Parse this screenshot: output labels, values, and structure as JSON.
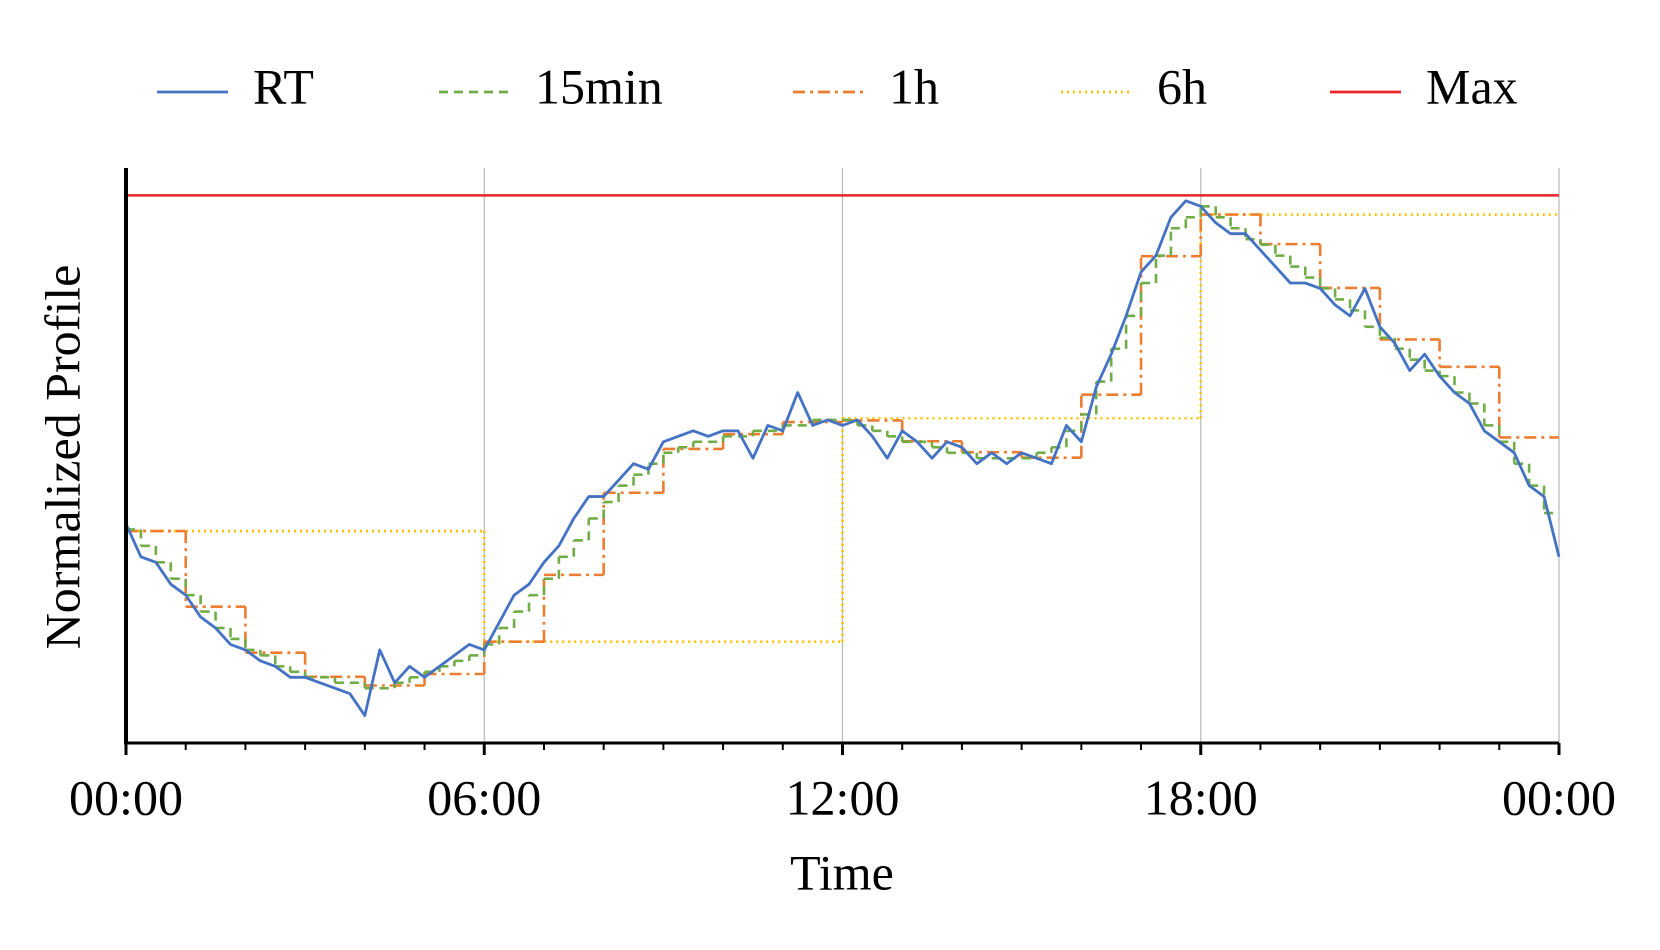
{
  "chart_data": {
    "type": "line",
    "x_label": "Time",
    "y_label": "Normalized Profile",
    "xlim": [
      0,
      24
    ],
    "ylim": [
      0,
      1.05
    ],
    "xticks": [
      {
        "value": 0,
        "label": "00:00"
      },
      {
        "value": 6,
        "label": "06:00"
      },
      {
        "value": 12,
        "label": "12:00"
      },
      {
        "value": 18,
        "label": "18:00"
      },
      {
        "value": 24,
        "label": "00:00"
      }
    ],
    "xminorticks": [
      1,
      2,
      3,
      4,
      5,
      7,
      8,
      9,
      10,
      11,
      13,
      14,
      15,
      16,
      17,
      19,
      20,
      21,
      22,
      23
    ],
    "grid": "x",
    "legend": "top",
    "series": [
      {
        "name": "RT",
        "color": "#4472c4",
        "style": "solid",
        "step": false,
        "x": [
          0,
          0.25,
          0.5,
          0.75,
          1,
          1.25,
          1.5,
          1.75,
          2,
          2.25,
          2.5,
          2.75,
          3,
          3.25,
          3.5,
          3.75,
          4,
          4.25,
          4.5,
          4.75,
          5,
          5.25,
          5.5,
          5.75,
          6,
          6.25,
          6.5,
          6.75,
          7,
          7.25,
          7.5,
          7.75,
          8,
          8.25,
          8.5,
          8.75,
          9,
          9.25,
          9.5,
          9.75,
          10,
          10.25,
          10.5,
          10.75,
          11,
          11.25,
          11.5,
          11.75,
          12,
          12.25,
          12.5,
          12.75,
          13,
          13.25,
          13.5,
          13.75,
          14,
          14.25,
          14.5,
          14.75,
          15,
          15.25,
          15.5,
          15.75,
          16,
          16.25,
          16.5,
          16.75,
          17,
          17.25,
          17.5,
          17.75,
          18,
          18.25,
          18.5,
          18.75,
          19,
          19.25,
          19.5,
          19.75,
          20,
          20.25,
          20.5,
          20.75,
          21,
          21.25,
          21.5,
          21.75,
          22,
          22.25,
          22.5,
          22.75,
          23,
          23.25,
          23.5,
          23.75,
          24
        ],
        "values": [
          0.4,
          0.34,
          0.33,
          0.29,
          0.27,
          0.23,
          0.21,
          0.18,
          0.17,
          0.15,
          0.14,
          0.12,
          0.12,
          0.11,
          0.1,
          0.09,
          0.05,
          0.17,
          0.11,
          0.14,
          0.12,
          0.14,
          0.16,
          0.18,
          0.17,
          0.22,
          0.27,
          0.29,
          0.33,
          0.36,
          0.41,
          0.45,
          0.45,
          0.48,
          0.51,
          0.5,
          0.55,
          0.56,
          0.57,
          0.56,
          0.57,
          0.57,
          0.52,
          0.58,
          0.57,
          0.64,
          0.58,
          0.59,
          0.58,
          0.59,
          0.56,
          0.52,
          0.57,
          0.55,
          0.52,
          0.55,
          0.54,
          0.51,
          0.53,
          0.51,
          0.53,
          0.52,
          0.51,
          0.58,
          0.55,
          0.65,
          0.71,
          0.78,
          0.86,
          0.89,
          0.96,
          0.99,
          0.98,
          0.95,
          0.93,
          0.93,
          0.9,
          0.87,
          0.84,
          0.84,
          0.83,
          0.8,
          0.78,
          0.83,
          0.76,
          0.73,
          0.68,
          0.71,
          0.67,
          0.64,
          0.62,
          0.57,
          0.55,
          0.53,
          0.47,
          0.45,
          0.34
        ]
      },
      {
        "name": "15min",
        "color": "#70ad47",
        "style": "dashed",
        "step": true,
        "x": [
          0,
          0.25,
          0.5,
          0.75,
          1,
          1.25,
          1.5,
          1.75,
          2,
          2.25,
          2.5,
          2.75,
          3,
          3.25,
          3.5,
          3.75,
          4,
          4.25,
          4.5,
          4.75,
          5,
          5.25,
          5.5,
          5.75,
          6,
          6.25,
          6.5,
          6.75,
          7,
          7.25,
          7.5,
          7.75,
          8,
          8.25,
          8.5,
          8.75,
          9,
          9.25,
          9.5,
          9.75,
          10,
          10.25,
          10.5,
          10.75,
          11,
          11.25,
          11.5,
          11.75,
          12,
          12.25,
          12.5,
          12.75,
          13,
          13.25,
          13.5,
          13.75,
          14,
          14.25,
          14.5,
          14.75,
          15,
          15.25,
          15.5,
          15.75,
          16,
          16.25,
          16.5,
          16.75,
          17,
          17.25,
          17.5,
          17.75,
          18,
          18.25,
          18.5,
          18.75,
          19,
          19.25,
          19.5,
          19.75,
          20,
          20.25,
          20.5,
          20.75,
          21,
          21.25,
          21.5,
          21.75,
          22,
          22.25,
          22.5,
          22.75,
          23,
          23.25,
          23.5,
          23.75
        ],
        "values": [
          0.39,
          0.36,
          0.33,
          0.3,
          0.27,
          0.24,
          0.21,
          0.19,
          0.17,
          0.16,
          0.14,
          0.13,
          0.12,
          0.12,
          0.11,
          0.11,
          0.1,
          0.1,
          0.11,
          0.12,
          0.13,
          0.14,
          0.15,
          0.16,
          0.18,
          0.21,
          0.24,
          0.27,
          0.3,
          0.34,
          0.37,
          0.41,
          0.44,
          0.47,
          0.49,
          0.51,
          0.53,
          0.54,
          0.55,
          0.55,
          0.56,
          0.56,
          0.57,
          0.57,
          0.58,
          0.58,
          0.59,
          0.59,
          0.59,
          0.58,
          0.57,
          0.56,
          0.55,
          0.55,
          0.54,
          0.53,
          0.53,
          0.52,
          0.52,
          0.52,
          0.52,
          0.53,
          0.54,
          0.57,
          0.6,
          0.66,
          0.72,
          0.78,
          0.84,
          0.89,
          0.94,
          0.96,
          0.98,
          0.96,
          0.94,
          0.92,
          0.91,
          0.89,
          0.87,
          0.85,
          0.83,
          0.81,
          0.79,
          0.76,
          0.74,
          0.72,
          0.7,
          0.68,
          0.67,
          0.64,
          0.62,
          0.58,
          0.55,
          0.51,
          0.47,
          0.42
        ]
      },
      {
        "name": "1h",
        "color": "#ed7d31",
        "style": "dashdot",
        "step": true,
        "x": [
          0,
          1,
          2,
          3,
          4,
          5,
          6,
          7,
          8,
          9,
          10,
          11,
          12,
          13,
          14,
          15,
          16,
          17,
          18,
          19,
          20,
          21,
          22,
          23
        ],
        "values": [
          0.387,
          0.249,
          0.165,
          0.121,
          0.105,
          0.126,
          0.185,
          0.307,
          0.457,
          0.537,
          0.564,
          0.586,
          0.589,
          0.551,
          0.531,
          0.521,
          0.636,
          0.889,
          0.965,
          0.911,
          0.831,
          0.737,
          0.687,
          0.558
        ]
      },
      {
        "name": "6h",
        "color": "#ffc000",
        "style": "dotted",
        "step": true,
        "x": [
          0,
          6,
          12,
          18
        ],
        "values": [
          0.387,
          0.185,
          0.593,
          0.965
        ]
      },
      {
        "name": "Max",
        "color": "#e8262a",
        "style": "solid",
        "step": true,
        "x": [
          0
        ],
        "values": [
          1.0
        ]
      }
    ]
  }
}
